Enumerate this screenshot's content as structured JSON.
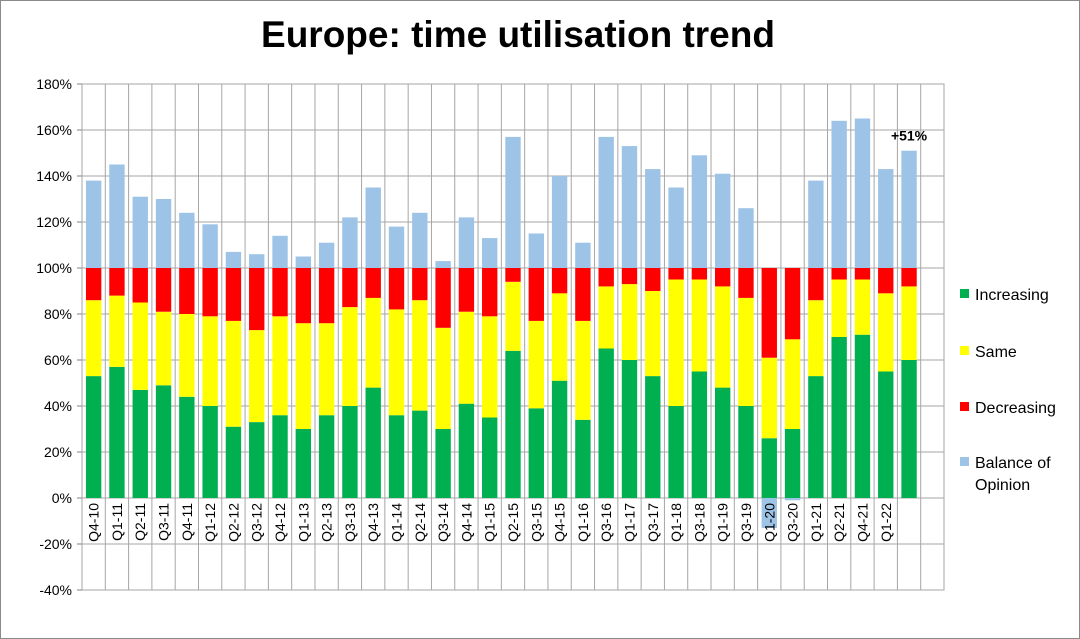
{
  "chart_data": {
    "type": "bar",
    "stacked": true,
    "title": "Europe: time utilisation trend",
    "categories": [
      "Q4-10",
      "Q1-11",
      "Q2-11",
      "Q3-11",
      "Q4-11",
      "Q1-12",
      "Q2-12",
      "Q3-12",
      "Q4-12",
      "Q1-13",
      "Q2-13",
      "Q3-13",
      "Q4-13",
      "Q1-14",
      "Q2-14",
      "Q3-14",
      "Q4-14",
      "Q1-15",
      "Q2-15",
      "Q3-15",
      "Q4-15",
      "Q1-16",
      "Q3-16",
      "Q1-17",
      "Q3-17",
      "Q1-18",
      "Q3-18",
      "Q1-19",
      "Q3-19",
      "Q1-20",
      "Q3-20",
      "Q1-21",
      "Q2-21",
      "Q4-21",
      "Q1-22",
      "",
      ""
    ],
    "series": [
      {
        "name": "Increasing",
        "color": "#00b050",
        "values": [
          53,
          57,
          47,
          49,
          44,
          40,
          31,
          33,
          36,
          30,
          36,
          40,
          48,
          36,
          38,
          30,
          41,
          35,
          64,
          39,
          51,
          34,
          65,
          60,
          53,
          40,
          55,
          48,
          40,
          26,
          30,
          53,
          70,
          71,
          55,
          60,
          0
        ]
      },
      {
        "name": "Same",
        "color": "#ffff00",
        "values": [
          33,
          31,
          38,
          32,
          36,
          39,
          46,
          40,
          43,
          46,
          40,
          43,
          39,
          46,
          48,
          44,
          40,
          44,
          30,
          38,
          38,
          43,
          27,
          33,
          37,
          55,
          40,
          44,
          47,
          35,
          39,
          33,
          25,
          24,
          34,
          32,
          0
        ]
      },
      {
        "name": "Decreasing",
        "color": "#ff0000",
        "values": [
          14,
          12,
          15,
          19,
          20,
          21,
          23,
          27,
          21,
          24,
          24,
          17,
          13,
          18,
          14,
          26,
          19,
          21,
          6,
          23,
          11,
          23,
          8,
          7,
          10,
          5,
          5,
          8,
          13,
          39,
          31,
          14,
          5,
          5,
          11,
          8,
          0
        ]
      },
      {
        "name": "Balance of Opinion",
        "color": "#9dc3e6",
        "values": [
          38,
          45,
          31,
          30,
          24,
          19,
          7,
          6,
          14,
          5,
          11,
          22,
          35,
          18,
          24,
          3,
          22,
          13,
          57,
          15,
          40,
          11,
          57,
          53,
          43,
          35,
          49,
          41,
          26,
          -13,
          -1,
          38,
          64,
          65,
          43,
          51,
          0
        ]
      }
    ],
    "annotation": "+51%",
    "ylim": [
      -40,
      180
    ],
    "yticks": [
      -40,
      -20,
      0,
      20,
      40,
      60,
      80,
      100,
      120,
      140,
      160,
      180
    ],
    "ytick_suffix": "%",
    "grid": true,
    "legend_position": "right"
  }
}
